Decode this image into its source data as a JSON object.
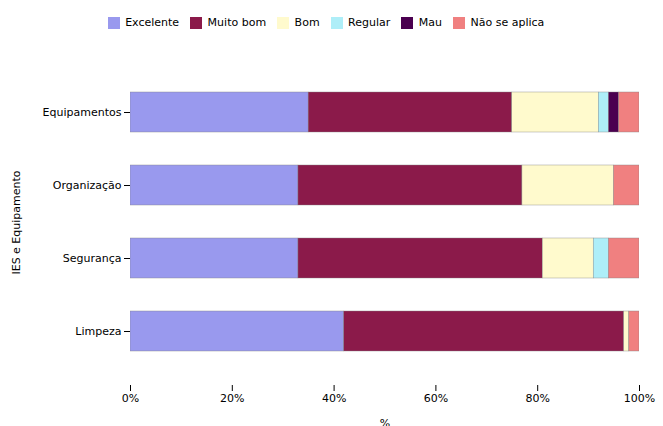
{
  "chart_data": {
    "type": "bar",
    "orientation": "horizontal",
    "stacked": true,
    "categories": [
      "Limpeza",
      "Segurança",
      "Organização",
      "Equipamentos"
    ],
    "series": [
      {
        "name": "Excelente",
        "color": "#9999EE",
        "values": [
          42.0,
          33.0,
          33.0,
          35.0
        ]
      },
      {
        "name": "Muito bom",
        "color": "#8B1A4A",
        "values": [
          55.0,
          48.0,
          44.0,
          40.0
        ]
      },
      {
        "name": "Bom",
        "color": "#FFFACD",
        "values": [
          1.0,
          10.0,
          18.0,
          17.0
        ]
      },
      {
        "name": "Regular",
        "color": "#AEEEF8",
        "values": [
          0.0,
          3.0,
          0.0,
          2.0
        ]
      },
      {
        "name": "Mau",
        "color": "#4B0050",
        "values": [
          0.0,
          0.0,
          0.0,
          2.0
        ]
      },
      {
        "name": "Não se aplica",
        "color": "#F08080",
        "values": [
          2.0,
          6.0,
          5.0,
          4.0
        ]
      }
    ],
    "xlabel": "%",
    "ylabel": "IES e Equipamento",
    "xlim": [
      0,
      100
    ],
    "xticks": [
      {
        "value": 0,
        "label": "0%"
      },
      {
        "value": 20,
        "label": "20%"
      },
      {
        "value": 40,
        "label": "40%"
      },
      {
        "value": 60,
        "label": "60%"
      },
      {
        "value": 80,
        "label": "80%"
      },
      {
        "value": 100,
        "label": "100%"
      }
    ],
    "legend": "top",
    "grid": false
  }
}
